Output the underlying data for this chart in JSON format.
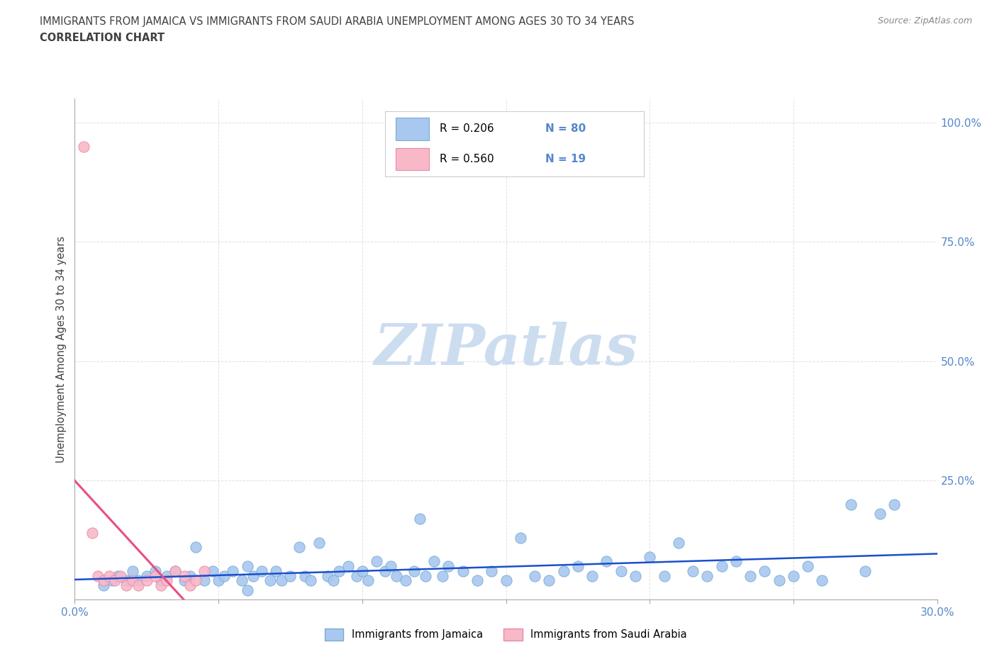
{
  "title_line1": "IMMIGRANTS FROM JAMAICA VS IMMIGRANTS FROM SAUDI ARABIA UNEMPLOYMENT AMONG AGES 30 TO 34 YEARS",
  "title_line2": "CORRELATION CHART",
  "source_text": "Source: ZipAtlas.com",
  "ylabel": "Unemployment Among Ages 30 to 34 years",
  "xlim": [
    0.0,
    0.3
  ],
  "ylim": [
    0.0,
    1.05
  ],
  "ytick_positions": [
    0.0,
    0.25,
    0.5,
    0.75,
    1.0
  ],
  "ytick_labels": [
    "",
    "25.0%",
    "50.0%",
    "75.0%",
    "100.0%"
  ],
  "jamaica_color": "#a8c8f0",
  "jamaica_edge": "#7aaad0",
  "saudi_color": "#f8b8c8",
  "saudi_edge": "#e888a8",
  "reg_jamaica_color": "#1a4fcc",
  "reg_saudi_color": "#e85080",
  "legend_R_jamaica": "0.206",
  "legend_N_jamaica": "80",
  "legend_R_saudi": "0.560",
  "legend_N_saudi": "19",
  "watermark": "ZIPatlas",
  "watermark_color": "#ccddf0",
  "jamaica_x": [
    0.01,
    0.013,
    0.015,
    0.018,
    0.02,
    0.022,
    0.025,
    0.028,
    0.03,
    0.032,
    0.035,
    0.038,
    0.04,
    0.042,
    0.045,
    0.048,
    0.05,
    0.052,
    0.055,
    0.058,
    0.06,
    0.062,
    0.065,
    0.068,
    0.07,
    0.072,
    0.075,
    0.078,
    0.08,
    0.082,
    0.085,
    0.088,
    0.09,
    0.092,
    0.095,
    0.098,
    0.1,
    0.102,
    0.105,
    0.108,
    0.11,
    0.112,
    0.115,
    0.118,
    0.12,
    0.122,
    0.125,
    0.128,
    0.13,
    0.135,
    0.14,
    0.145,
    0.15,
    0.155,
    0.16,
    0.165,
    0.17,
    0.175,
    0.18,
    0.185,
    0.19,
    0.195,
    0.2,
    0.205,
    0.21,
    0.215,
    0.22,
    0.225,
    0.23,
    0.235,
    0.24,
    0.245,
    0.25,
    0.255,
    0.26,
    0.27,
    0.275,
    0.28,
    0.285,
    0.06
  ],
  "jamaica_y": [
    0.03,
    0.04,
    0.05,
    0.04,
    0.06,
    0.04,
    0.05,
    0.06,
    0.04,
    0.05,
    0.06,
    0.04,
    0.05,
    0.11,
    0.04,
    0.06,
    0.04,
    0.05,
    0.06,
    0.04,
    0.07,
    0.05,
    0.06,
    0.04,
    0.06,
    0.04,
    0.05,
    0.11,
    0.05,
    0.04,
    0.12,
    0.05,
    0.04,
    0.06,
    0.07,
    0.05,
    0.06,
    0.04,
    0.08,
    0.06,
    0.07,
    0.05,
    0.04,
    0.06,
    0.17,
    0.05,
    0.08,
    0.05,
    0.07,
    0.06,
    0.04,
    0.06,
    0.04,
    0.13,
    0.05,
    0.04,
    0.06,
    0.07,
    0.05,
    0.08,
    0.06,
    0.05,
    0.09,
    0.05,
    0.12,
    0.06,
    0.05,
    0.07,
    0.08,
    0.05,
    0.06,
    0.04,
    0.05,
    0.07,
    0.04,
    0.2,
    0.06,
    0.18,
    0.2,
    0.02
  ],
  "saudi_x": [
    0.003,
    0.006,
    0.008,
    0.01,
    0.012,
    0.014,
    0.016,
    0.018,
    0.02,
    0.022,
    0.025,
    0.028,
    0.03,
    0.032,
    0.035,
    0.038,
    0.04,
    0.042,
    0.045
  ],
  "saudi_y": [
    0.95,
    0.14,
    0.05,
    0.04,
    0.05,
    0.04,
    0.05,
    0.03,
    0.04,
    0.03,
    0.04,
    0.05,
    0.03,
    0.04,
    0.06,
    0.05,
    0.03,
    0.04,
    0.06
  ],
  "grid_color": "#cccccc",
  "title_color": "#404040",
  "tick_label_color": "#5588cc",
  "bottom_legend_labels": [
    "Immigrants from Jamaica",
    "Immigrants from Saudi Arabia"
  ]
}
